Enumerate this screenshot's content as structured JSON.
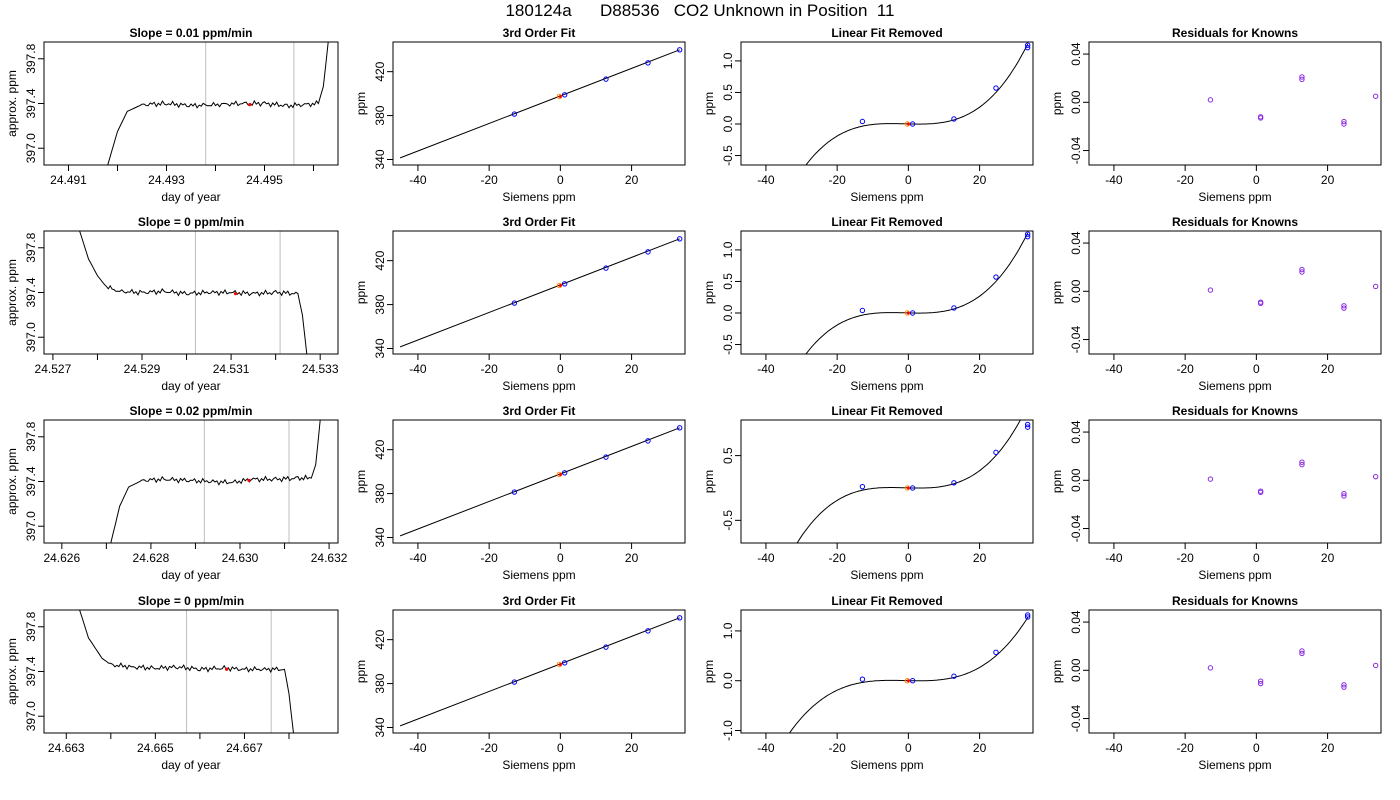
{
  "figure_title": "180124a      D88536   CO2 Unknown in Position  11",
  "colors": {
    "trace": "#000000",
    "window": "#bebebe",
    "known": "#0000ff",
    "unknown": "#ff0000",
    "residual": "#8a2be2",
    "ref": "#ff8c00"
  },
  "chart_data": [
    {
      "type": "line",
      "title": "Slope =  0.01  ppm/min",
      "xlabel": "day of year",
      "ylabel": "approx. ppm",
      "xlim": [
        24.4905,
        24.4965
      ],
      "ylim": [
        396.85,
        397.95
      ],
      "xticks": [
        24.491,
        24.492,
        24.493,
        24.494,
        24.495,
        24.496
      ],
      "xtick_labels": [
        "24.491",
        "",
        "24.493",
        "",
        "24.495",
        ""
      ],
      "yticks": [
        397.0,
        397.4,
        397.8
      ],
      "ytick_labels": [
        "397.0",
        "397.4",
        "397.8"
      ],
      "window": [
        24.4938,
        24.4956
      ],
      "x": [
        24.4918,
        24.492,
        24.4922,
        24.4925,
        24.493,
        24.4935,
        24.494,
        24.4945,
        24.495,
        24.4955,
        24.4961,
        24.4962,
        24.4963
      ],
      "y": [
        396.85,
        397.15,
        397.33,
        397.39,
        397.4,
        397.38,
        397.39,
        397.4,
        397.4,
        397.38,
        397.4,
        397.55,
        397.95
      ],
      "marker": [
        24.4947,
        397.39
      ]
    },
    {
      "type": "scatter",
      "title": "3rd Order Fit",
      "xlabel": "Siemens ppm",
      "ylabel": "ppm",
      "xlim": [
        -47,
        35
      ],
      "ylim": [
        335,
        447
      ],
      "xticks": [
        -40,
        -20,
        0,
        20
      ],
      "yticks": [
        340,
        380,
        420
      ],
      "fit_line": [
        [
          -45,
          341.5
        ],
        [
          33.5,
          439.9
        ]
      ],
      "knowns": [
        [
          -12.9,
          381.4
        ],
        [
          1.2,
          398.9
        ],
        [
          12.8,
          413.2
        ],
        [
          24.6,
          428.0
        ],
        [
          33.5,
          439.9
        ]
      ],
      "unknown": [
        [
          0,
          397.4
        ]
      ]
    },
    {
      "type": "scatter",
      "title": "Linear Fit Removed",
      "xlabel": "Siemens ppm",
      "ylabel": "ppm",
      "xlim": [
        -47,
        35
      ],
      "ylim": [
        -0.65,
        1.3
      ],
      "xticks": [
        -40,
        -20,
        0,
        20
      ],
      "yticks": [
        -0.5,
        0,
        0.5,
        1.0
      ],
      "ytick_labels": [
        "-0.5",
        "0.0",
        "0.5",
        "1.0"
      ],
      "curve": {
        "a": 0.0015,
        "b": 0.00057,
        "c": -2e-07,
        "x0": 1.2,
        "x1": -45,
        "x2": 33.5
      },
      "knowns": [
        [
          -12.9,
          0.04
        ],
        [
          1.2,
          0.0
        ],
        [
          12.8,
          0.08
        ],
        [
          24.6,
          0.57
        ],
        [
          33.5,
          1.25
        ],
        [
          33.5,
          1.21
        ]
      ],
      "unknown": [
        [
          0,
          0.0
        ]
      ]
    },
    {
      "type": "scatter",
      "title": "Residuals for Knowns",
      "xlabel": "Siemens ppm",
      "ylabel": "ppm",
      "xlim": [
        -47,
        35
      ],
      "ylim": [
        -0.052,
        0.05
      ],
      "xticks": [
        -40,
        -20,
        0,
        20
      ],
      "yticks": [
        -0.04,
        0,
        0.04
      ],
      "ytick_labels": [
        "-0.04",
        "0.00",
        "0.04"
      ],
      "points": [
        [
          -12.9,
          0.002
        ],
        [
          1.2,
          -0.012
        ],
        [
          1.2,
          -0.013
        ],
        [
          12.8,
          0.019
        ],
        [
          12.8,
          0.021
        ],
        [
          24.6,
          -0.016
        ],
        [
          24.6,
          -0.018
        ],
        [
          33.5,
          0.005
        ]
      ]
    },
    {
      "type": "line",
      "title": "Slope =  0  ppm/min",
      "xlabel": "day of year",
      "ylabel": "approx. ppm",
      "xlim": [
        24.5268,
        24.5334
      ],
      "ylim": [
        396.85,
        397.95
      ],
      "xticks": [
        24.527,
        24.528,
        24.529,
        24.53,
        24.531,
        24.532,
        24.533
      ],
      "xtick_labels": [
        "24.527",
        "",
        "24.529",
        "",
        "24.531",
        "",
        "24.533"
      ],
      "yticks": [
        397.0,
        397.4,
        397.8
      ],
      "ytick_labels": [
        "397.0",
        "397.4",
        "397.8"
      ],
      "window": [
        24.5302,
        24.5321
      ],
      "x": [
        24.5276,
        24.5278,
        24.528,
        24.5282,
        24.5285,
        24.529,
        24.5295,
        24.53,
        24.5305,
        24.531,
        24.5315,
        24.532,
        24.5325,
        24.5326,
        24.5327
      ],
      "y": [
        397.95,
        397.7,
        397.55,
        397.45,
        397.41,
        397.4,
        397.41,
        397.39,
        397.4,
        397.4,
        397.39,
        397.4,
        397.39,
        397.2,
        396.85
      ],
      "marker": [
        24.5311,
        397.39
      ]
    },
    {
      "type": "scatter",
      "title": "3rd Order Fit",
      "xlabel": "Siemens ppm",
      "ylabel": "ppm",
      "xlim": [
        -47,
        35
      ],
      "ylim": [
        335,
        447
      ],
      "xticks": [
        -40,
        -20,
        0,
        20
      ],
      "yticks": [
        340,
        380,
        420
      ],
      "fit_line": [
        [
          -45,
          341.5
        ],
        [
          33.5,
          439.9
        ]
      ],
      "knowns": [
        [
          -12.9,
          381.4
        ],
        [
          1.2,
          398.9
        ],
        [
          12.8,
          413.2
        ],
        [
          24.6,
          428.0
        ],
        [
          33.5,
          439.9
        ]
      ],
      "unknown": [
        [
          0,
          397.4
        ]
      ]
    },
    {
      "type": "scatter",
      "title": "Linear Fit Removed",
      "xlabel": "Siemens ppm",
      "ylabel": "ppm",
      "xlim": [
        -47,
        35
      ],
      "ylim": [
        -0.65,
        1.3
      ],
      "xticks": [
        -40,
        -20,
        0,
        20
      ],
      "yticks": [
        -0.5,
        0,
        0.5,
        1.0
      ],
      "ytick_labels": [
        "-0.5",
        "0.0",
        "0.5",
        "1.0"
      ],
      "curve": {
        "a": 0.0015,
        "b": 0.00057,
        "c": -2e-07,
        "x0": 1.2,
        "x1": -45,
        "x2": 33.5
      },
      "knowns": [
        [
          -12.9,
          0.04
        ],
        [
          1.2,
          0.0
        ],
        [
          12.8,
          0.08
        ],
        [
          24.6,
          0.57
        ],
        [
          33.5,
          1.25
        ],
        [
          33.5,
          1.21
        ]
      ],
      "unknown": [
        [
          0,
          0.0
        ]
      ]
    },
    {
      "type": "scatter",
      "title": "Residuals for Knowns",
      "xlabel": "Siemens ppm",
      "ylabel": "ppm",
      "xlim": [
        -47,
        35
      ],
      "ylim": [
        -0.052,
        0.05
      ],
      "xticks": [
        -40,
        -20,
        0,
        20
      ],
      "yticks": [
        -0.04,
        0,
        0.04
      ],
      "ytick_labels": [
        "-0.04",
        "0.00",
        "0.04"
      ],
      "points": [
        [
          -12.9,
          0.001
        ],
        [
          1.2,
          -0.009
        ],
        [
          1.2,
          -0.01
        ],
        [
          12.8,
          0.016
        ],
        [
          12.8,
          0.018
        ],
        [
          24.6,
          -0.012
        ],
        [
          24.6,
          -0.014
        ],
        [
          33.5,
          0.004
        ]
      ]
    },
    {
      "type": "line",
      "title": "Slope =  0.02  ppm/min",
      "xlabel": "day of year",
      "ylabel": "approx. ppm",
      "xlim": [
        24.6256,
        24.6322
      ],
      "ylim": [
        396.85,
        397.95
      ],
      "xticks": [
        24.626,
        24.627,
        24.628,
        24.629,
        24.63,
        24.631,
        24.632
      ],
      "xtick_labels": [
        "24.626",
        "",
        "24.628",
        "",
        "24.630",
        "",
        "24.632"
      ],
      "yticks": [
        397.0,
        397.4,
        397.8
      ],
      "ytick_labels": [
        "397.0",
        "397.4",
        "397.8"
      ],
      "window": [
        24.6292,
        24.6311
      ],
      "x": [
        24.6271,
        24.6273,
        24.6275,
        24.6278,
        24.6283,
        24.6288,
        24.6293,
        24.6298,
        24.6303,
        24.6308,
        24.6313,
        24.6316,
        24.6317,
        24.6318
      ],
      "y": [
        396.85,
        397.18,
        397.35,
        397.41,
        397.42,
        397.41,
        397.4,
        397.39,
        397.42,
        397.42,
        397.43,
        397.43,
        397.55,
        397.95
      ],
      "marker": [
        24.6302,
        397.41
      ]
    },
    {
      "type": "scatter",
      "title": "3rd Order Fit",
      "xlabel": "Siemens ppm",
      "ylabel": "ppm",
      "xlim": [
        -47,
        35
      ],
      "ylim": [
        335,
        447
      ],
      "xticks": [
        -40,
        -20,
        0,
        20
      ],
      "yticks": [
        340,
        380,
        420
      ],
      "fit_line": [
        [
          -45,
          341.5
        ],
        [
          33.5,
          439.9
        ]
      ],
      "knowns": [
        [
          -12.9,
          381.4
        ],
        [
          1.2,
          398.9
        ],
        [
          12.8,
          413.2
        ],
        [
          24.6,
          428.0
        ],
        [
          33.5,
          439.9
        ]
      ],
      "unknown": [
        [
          0,
          397.4
        ]
      ]
    },
    {
      "type": "scatter",
      "title": "Linear Fit Removed",
      "xlabel": "Siemens ppm",
      "ylabel": "ppm",
      "xlim": [
        -47,
        35
      ],
      "ylim": [
        -0.85,
        1.05
      ],
      "xticks": [
        -40,
        -20,
        0,
        20
      ],
      "yticks": [
        -0.5,
        0.5
      ],
      "ytick_labels": [
        "-0.5",
        "0.5"
      ],
      "curve": {
        "a": 0.0015,
        "b": 0.00057,
        "c": -2e-07,
        "x0": 1.2,
        "x1": -45,
        "x2": 33.5
      },
      "knowns": [
        [
          -12.9,
          0.02
        ],
        [
          1.2,
          0.0
        ],
        [
          12.8,
          0.08
        ],
        [
          24.6,
          0.55
        ],
        [
          33.5,
          0.98
        ],
        [
          33.5,
          0.94
        ]
      ],
      "unknown": [
        [
          0,
          0.0
        ]
      ]
    },
    {
      "type": "scatter",
      "title": "Residuals for Knowns",
      "xlabel": "Siemens ppm",
      "ylabel": "ppm",
      "xlim": [
        -47,
        35
      ],
      "ylim": [
        -0.052,
        0.05
      ],
      "xticks": [
        -40,
        -20,
        0,
        20
      ],
      "yticks": [
        -0.04,
        0,
        0.04
      ],
      "ytick_labels": [
        "-0.04",
        "0.00",
        "0.04"
      ],
      "points": [
        [
          -12.9,
          0.001
        ],
        [
          1.2,
          -0.009
        ],
        [
          1.2,
          -0.01
        ],
        [
          12.8,
          0.013
        ],
        [
          12.8,
          0.015
        ],
        [
          24.6,
          -0.011
        ],
        [
          24.6,
          -0.013
        ],
        [
          33.5,
          0.003
        ]
      ]
    },
    {
      "type": "line",
      "title": "Slope =  0  ppm/min",
      "xlabel": "day of year",
      "ylabel": "approx. ppm",
      "xlim": [
        24.6625,
        24.6691
      ],
      "ylim": [
        396.85,
        397.95
      ],
      "xticks": [
        24.663,
        24.664,
        24.665,
        24.666,
        24.667,
        24.668
      ],
      "xtick_labels": [
        "24.663",
        "",
        "24.665",
        "",
        "24.667",
        ""
      ],
      "yticks": [
        397.0,
        397.4,
        397.8
      ],
      "ytick_labels": [
        "397.0",
        "397.4",
        "397.8"
      ],
      "window": [
        24.6657,
        24.6676
      ],
      "x": [
        24.6633,
        24.6635,
        24.6638,
        24.664,
        24.6645,
        24.665,
        24.6655,
        24.666,
        24.6665,
        24.667,
        24.6675,
        24.6679,
        24.668,
        24.6681
      ],
      "y": [
        397.95,
        397.7,
        397.52,
        397.46,
        397.44,
        397.43,
        397.44,
        397.42,
        397.43,
        397.42,
        397.42,
        397.42,
        397.2,
        396.85
      ],
      "marker": [
        24.6666,
        397.42
      ]
    },
    {
      "type": "scatter",
      "title": "3rd Order Fit",
      "xlabel": "Siemens ppm",
      "ylabel": "ppm",
      "xlim": [
        -47,
        35
      ],
      "ylim": [
        335,
        447
      ],
      "xticks": [
        -40,
        -20,
        0,
        20
      ],
      "yticks": [
        340,
        380,
        420
      ],
      "fit_line": [
        [
          -45,
          341.5
        ],
        [
          33.5,
          439.9
        ]
      ],
      "knowns": [
        [
          -12.9,
          381.4
        ],
        [
          1.2,
          398.9
        ],
        [
          12.8,
          413.2
        ],
        [
          24.6,
          428.0
        ],
        [
          33.5,
          439.9
        ]
      ],
      "unknown": [
        [
          0,
          397.4
        ]
      ]
    },
    {
      "type": "scatter",
      "title": "Linear Fit Removed",
      "xlabel": "Siemens ppm",
      "ylabel": "ppm",
      "xlim": [
        -47,
        35
      ],
      "ylim": [
        -1.05,
        1.42
      ],
      "xticks": [
        -40,
        -20,
        0,
        20
      ],
      "yticks": [
        -1.0,
        0,
        1.0
      ],
      "ytick_labels": [
        "-1.0",
        "0.0",
        "1.0"
      ],
      "curve": {
        "a": 0.0015,
        "b": 0.00057,
        "c": -2e-07,
        "x0": 1.2,
        "x1": -45,
        "x2": 33.5
      },
      "knowns": [
        [
          -12.9,
          0.03
        ],
        [
          1.2,
          0.0
        ],
        [
          12.8,
          0.09
        ],
        [
          24.6,
          0.57
        ],
        [
          33.5,
          1.32
        ],
        [
          33.5,
          1.28
        ]
      ],
      "unknown": [
        [
          0,
          0.0
        ]
      ]
    },
    {
      "type": "scatter",
      "title": "Residuals for Knowns",
      "xlabel": "Siemens ppm",
      "ylabel": "ppm",
      "xlim": [
        -47,
        35
      ],
      "ylim": [
        -0.052,
        0.05
      ],
      "xticks": [
        -40,
        -20,
        0,
        20
      ],
      "yticks": [
        -0.04,
        0,
        0.04
      ],
      "ytick_labels": [
        "-0.04",
        "0.00",
        "0.04"
      ],
      "points": [
        [
          -12.9,
          0.002
        ],
        [
          1.2,
          -0.009
        ],
        [
          1.2,
          -0.011
        ],
        [
          12.8,
          0.014
        ],
        [
          12.8,
          0.016
        ],
        [
          24.6,
          -0.012
        ],
        [
          24.6,
          -0.014
        ],
        [
          33.5,
          0.004
        ]
      ]
    }
  ]
}
